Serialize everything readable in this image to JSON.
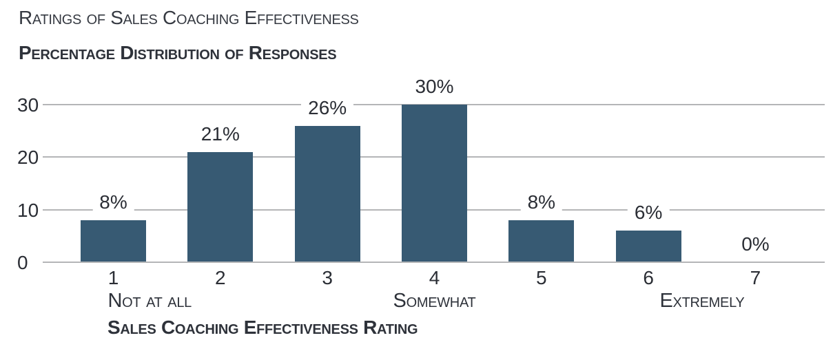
{
  "chart_data": {
    "type": "bar",
    "title": "Ratings of Sales Coaching Effectiveness",
    "subtitle": "Percentage Distribution of Responses",
    "xlabel": "Sales Coaching Effectiveness Rating",
    "ylabel": "",
    "categories": [
      "1",
      "2",
      "3",
      "4",
      "5",
      "6",
      "7"
    ],
    "values": [
      8,
      21,
      26,
      30,
      8,
      6,
      0
    ],
    "value_labels": [
      "8%",
      "21%",
      "26%",
      "30%",
      "8%",
      "6%",
      "0%"
    ],
    "ylim": [
      0,
      30
    ],
    "yticks": [
      0,
      10,
      20,
      30
    ],
    "grid": "horizontal",
    "legend_position": "none",
    "scale_annotations": [
      {
        "anchor": "1",
        "align": "left",
        "label": "Not at all"
      },
      {
        "anchor": "4",
        "align": "center",
        "label": "Somewhat"
      },
      {
        "anchor": "7",
        "align": "right",
        "label": "Extremely"
      }
    ],
    "colors": {
      "bar": "#375a73",
      "gridline": "#b4b5b7",
      "text": "#2c2f36",
      "background": "#ffffff"
    }
  }
}
